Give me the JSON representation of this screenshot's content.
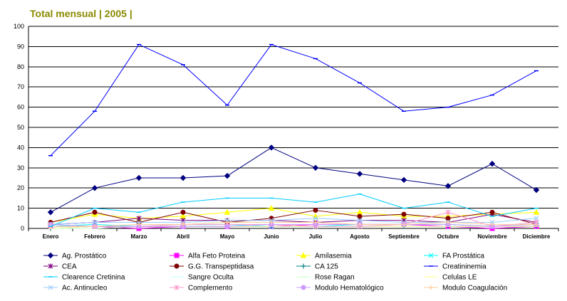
{
  "chart_data": {
    "type": "line",
    "title": "Total mensual | 2005 |",
    "xlabel": "",
    "ylabel": "",
    "ylim": [
      0,
      100
    ],
    "yticks": [
      0,
      10,
      20,
      30,
      40,
      50,
      60,
      70,
      80,
      90,
      100
    ],
    "grid": "horizontal",
    "legend": "bottom",
    "categories": [
      "Enero",
      "Febrero",
      "Marzo",
      "Abril",
      "Mayo",
      "Junio",
      "Julio",
      "Agosto",
      "Septiembre",
      "Octubre",
      "Noviembre",
      "Diciembre"
    ],
    "series": [
      {
        "name": "Ag. Prostático",
        "color": "#000080",
        "marker": "diamond",
        "values": [
          8,
          20,
          25,
          25,
          26,
          40,
          30,
          27,
          24,
          21,
          32,
          19
        ]
      },
      {
        "name": "Alfa Feto Proteina",
        "color": "#ff00ff",
        "marker": "square",
        "values": [
          1,
          1,
          0,
          1,
          1,
          1,
          2,
          2,
          2,
          1,
          0,
          1
        ]
      },
      {
        "name": "Amilasemia",
        "color": "#ffff00",
        "marker": "triangle",
        "values": [
          3,
          7,
          5,
          6,
          8,
          10,
          6,
          8,
          6,
          6,
          7,
          8
        ]
      },
      {
        "name": "FA Prostática",
        "color": "#00ffff",
        "marker": "x",
        "values": [
          1,
          2,
          1,
          2,
          2,
          1,
          1,
          2,
          2,
          2,
          1,
          2
        ]
      },
      {
        "name": "CEA",
        "color": "#800080",
        "marker": "star",
        "values": [
          2,
          3,
          5,
          4,
          4,
          4,
          3,
          4,
          4,
          3,
          7,
          3
        ]
      },
      {
        "name": "G.G. Transpeptidasa",
        "color": "#800000",
        "marker": "circle",
        "values": [
          3,
          8,
          3,
          8,
          3,
          5,
          9,
          6,
          7,
          5,
          8,
          2
        ]
      },
      {
        "name": "CA 125",
        "color": "#008080",
        "marker": "plus",
        "values": [
          0,
          1,
          1,
          1,
          1,
          1,
          1,
          1,
          1,
          1,
          1,
          1
        ]
      },
      {
        "name": "Creatininemia",
        "color": "#0000ff",
        "marker": "dash",
        "values": [
          36,
          58,
          91,
          81,
          61,
          91,
          84,
          72,
          58,
          60,
          66,
          78
        ]
      },
      {
        "name": "Clearence Cretinina",
        "color": "#00ccff",
        "marker": "dash",
        "values": [
          1,
          10,
          8,
          13,
          15,
          15,
          13,
          17,
          10,
          13,
          6,
          10
        ]
      },
      {
        "name": "Sangre Oculta",
        "color": "#ccffff",
        "marker": "dash",
        "values": [
          1,
          1,
          1,
          2,
          1,
          2,
          1,
          1,
          1,
          1,
          1,
          2
        ]
      },
      {
        "name": "Rose Ragan",
        "color": "#ccffcc",
        "marker": "dash",
        "values": [
          0,
          0,
          1,
          1,
          1,
          1,
          1,
          1,
          1,
          1,
          1,
          1
        ]
      },
      {
        "name": "Celulas LE",
        "color": "#ffff99",
        "marker": "dash",
        "values": [
          0,
          1,
          1,
          1,
          1,
          1,
          1,
          1,
          1,
          1,
          1,
          1
        ]
      },
      {
        "name": "Ac. Antinucleo",
        "color": "#99ccff",
        "marker": "x",
        "values": [
          2,
          3,
          3,
          3,
          4,
          4,
          5,
          4,
          3,
          3,
          3,
          5
        ]
      },
      {
        "name": "Complemento",
        "color": "#ff99cc",
        "marker": "star",
        "values": [
          1,
          1,
          1,
          2,
          2,
          2,
          1,
          1,
          2,
          8,
          1,
          3
        ]
      },
      {
        "name": "Modulo Hematológico",
        "color": "#cc99ff",
        "marker": "circle",
        "values": [
          2,
          1,
          1,
          1,
          1,
          2,
          2,
          2,
          2,
          2,
          1,
          2
        ]
      },
      {
        "name": "Modulo Coagulación",
        "color": "#ffcc99",
        "marker": "plus",
        "values": [
          1,
          1,
          2,
          2,
          3,
          3,
          3,
          2,
          2,
          3,
          2,
          2
        ]
      }
    ]
  }
}
